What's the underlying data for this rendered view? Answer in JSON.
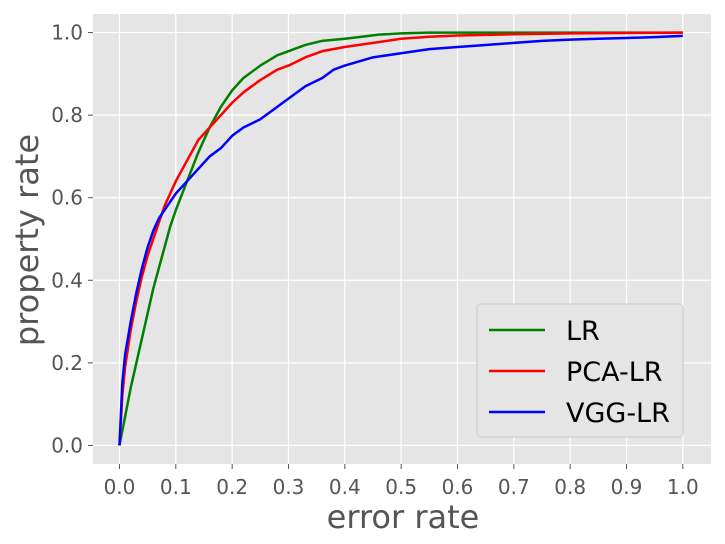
{
  "chart_data": {
    "type": "line",
    "title": "",
    "xlabel": "error rate",
    "ylabel": "property rate",
    "xlim": [
      0.0,
      1.0
    ],
    "ylim": [
      0.0,
      1.0
    ],
    "xticks": [
      "0.0",
      "0.1",
      "0.2",
      "0.3",
      "0.4",
      "0.5",
      "0.6",
      "0.7",
      "0.8",
      "0.9",
      "1.0"
    ],
    "yticks": [
      "0.0",
      "0.2",
      "0.4",
      "0.6",
      "0.8",
      "1.0"
    ],
    "grid": true,
    "legend_position": "bottom-right",
    "series": [
      {
        "name": "LR",
        "color": "#008000",
        "x": [
          0.0,
          0.01,
          0.02,
          0.03,
          0.04,
          0.05,
          0.06,
          0.07,
          0.08,
          0.09,
          0.1,
          0.12,
          0.14,
          0.16,
          0.18,
          0.2,
          0.22,
          0.25,
          0.28,
          0.3,
          0.33,
          0.36,
          0.4,
          0.43,
          0.46,
          0.5,
          0.55,
          0.6,
          0.7,
          0.8,
          0.9,
          1.0
        ],
        "y": [
          0.0,
          0.07,
          0.14,
          0.2,
          0.26,
          0.32,
          0.38,
          0.43,
          0.48,
          0.53,
          0.57,
          0.64,
          0.71,
          0.77,
          0.82,
          0.86,
          0.89,
          0.92,
          0.945,
          0.955,
          0.97,
          0.98,
          0.985,
          0.99,
          0.995,
          0.998,
          1.0,
          1.0,
          1.0,
          1.0,
          1.0,
          1.0
        ]
      },
      {
        "name": "PCA-LR",
        "color": "#ff0000",
        "x": [
          0.0,
          0.005,
          0.01,
          0.02,
          0.03,
          0.04,
          0.05,
          0.06,
          0.07,
          0.08,
          0.1,
          0.12,
          0.14,
          0.16,
          0.18,
          0.2,
          0.22,
          0.25,
          0.28,
          0.3,
          0.33,
          0.36,
          0.4,
          0.45,
          0.5,
          0.55,
          0.6,
          0.7,
          0.8,
          0.9,
          1.0
        ],
        "y": [
          0.0,
          0.12,
          0.19,
          0.28,
          0.35,
          0.41,
          0.46,
          0.5,
          0.54,
          0.58,
          0.64,
          0.69,
          0.74,
          0.77,
          0.8,
          0.83,
          0.855,
          0.885,
          0.91,
          0.92,
          0.94,
          0.955,
          0.965,
          0.975,
          0.985,
          0.99,
          0.993,
          0.996,
          0.998,
          0.999,
          1.0
        ]
      },
      {
        "name": "VGG-LR",
        "color": "#0000ff",
        "x": [
          0.0,
          0.005,
          0.01,
          0.02,
          0.03,
          0.04,
          0.05,
          0.06,
          0.07,
          0.08,
          0.1,
          0.12,
          0.14,
          0.16,
          0.18,
          0.2,
          0.22,
          0.25,
          0.28,
          0.3,
          0.33,
          0.36,
          0.38,
          0.4,
          0.45,
          0.5,
          0.55,
          0.6,
          0.65,
          0.7,
          0.75,
          0.8,
          0.85,
          0.9,
          0.95,
          1.0
        ],
        "y": [
          0.0,
          0.15,
          0.22,
          0.3,
          0.37,
          0.43,
          0.48,
          0.52,
          0.55,
          0.57,
          0.61,
          0.64,
          0.67,
          0.7,
          0.72,
          0.75,
          0.77,
          0.79,
          0.82,
          0.84,
          0.87,
          0.89,
          0.91,
          0.92,
          0.94,
          0.95,
          0.96,
          0.965,
          0.97,
          0.975,
          0.98,
          0.983,
          0.985,
          0.987,
          0.989,
          0.992
        ]
      }
    ]
  }
}
